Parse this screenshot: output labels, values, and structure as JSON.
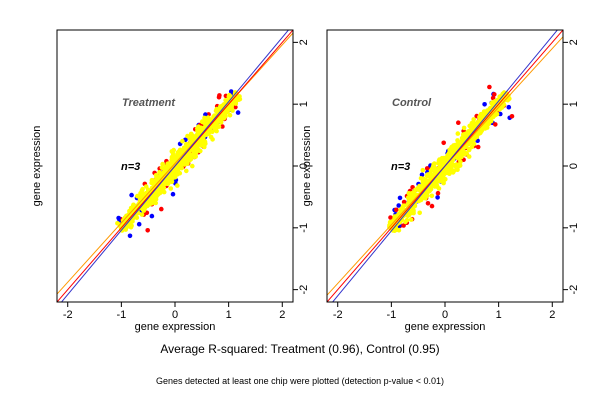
{
  "chart_data": [
    {
      "type": "scatter",
      "title": "Treatment",
      "annotation": "n=3",
      "xlabel": "gene expression",
      "ylabel": "gene expression",
      "xlim": [
        -2.2,
        2.2
      ],
      "ylim": [
        -2.2,
        2.2
      ],
      "xticks": [
        -2,
        -1,
        0,
        1,
        2
      ],
      "yticks": [
        -2,
        -1,
        0,
        1,
        2
      ],
      "grid": false,
      "lines": [
        {
          "color": "#ff9900",
          "slope": 0.96,
          "intercept": 0.04
        },
        {
          "color": "#ff0000",
          "slope": 1.0,
          "intercept": 0.0
        },
        {
          "color": "#3333cc",
          "slope": 1.04,
          "intercept": 0.0
        }
      ],
      "point_cloud": {
        "x_range": [
          -1.05,
          1.2
        ],
        "y_range": [
          -1.05,
          1.2
        ],
        "colors": [
          "#0000ff",
          "#ff0000",
          "#ffff00"
        ]
      }
    },
    {
      "type": "scatter",
      "title": "Control",
      "annotation": "n=3",
      "xlabel": "gene expression",
      "ylabel": "gene expression",
      "xlim": [
        -2.2,
        2.2
      ],
      "ylim": [
        -2.2,
        2.2
      ],
      "xticks": [
        -2,
        -1,
        0,
        1,
        2
      ],
      "yticks": [
        -2,
        -1,
        0,
        1,
        2
      ],
      "grid": false,
      "lines": [
        {
          "color": "#ff9900",
          "slope": 0.95,
          "intercept": 0.0
        },
        {
          "color": "#ff0000",
          "slope": 1.0,
          "intercept": 0.0
        },
        {
          "color": "#3333cc",
          "slope": 1.05,
          "intercept": 0.0
        }
      ],
      "point_cloud": {
        "x_range": [
          -1.05,
          1.2
        ],
        "y_range": [
          -1.1,
          1.2
        ],
        "colors": [
          "#0000ff",
          "#ff0000",
          "#ffff00"
        ]
      }
    }
  ],
  "footer": {
    "summary": "Average R-squared: Treatment (0.96), Control (0.95)",
    "note": "Genes detected at least one chip were plotted (detection p-value < 0.01)"
  }
}
